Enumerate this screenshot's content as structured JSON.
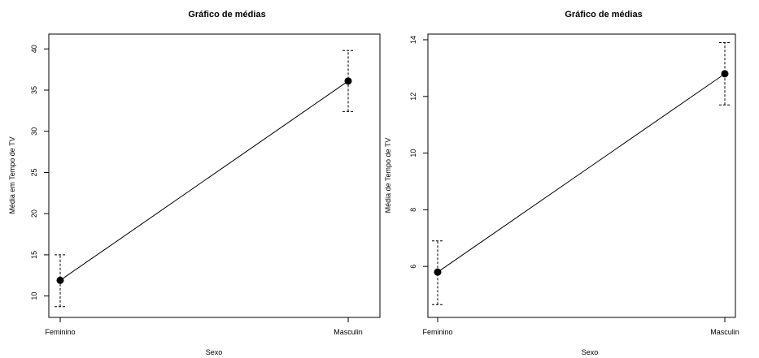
{
  "chart_data": [
    {
      "type": "line",
      "title": "Gráfico de médias",
      "xlabel": "Sexo",
      "ylabel": "Média em Tempo de TV",
      "categories": [
        "Feminino",
        "Masculin"
      ],
      "means": [
        11.9,
        36.1
      ],
      "errors": {
        "lower": [
          8.7,
          32.4
        ],
        "upper": [
          15.0,
          39.8
        ]
      },
      "yticks": [
        10,
        15,
        20,
        25,
        30,
        35,
        40
      ],
      "ylim": [
        7.4,
        41.8
      ],
      "grid": false
    },
    {
      "type": "line",
      "title": "Gráfico de médias",
      "xlabel": "Sexo",
      "ylabel": "Média de Tempo de TV",
      "categories": [
        "Feminino",
        "Masculin"
      ],
      "means": [
        5.8,
        12.8
      ],
      "errors": {
        "lower": [
          4.65,
          11.7
        ],
        "upper": [
          6.9,
          13.9
        ]
      },
      "yticks": [
        6,
        8,
        10,
        12,
        14
      ],
      "ylim": [
        4.2,
        14.2
      ],
      "grid": false
    }
  ]
}
